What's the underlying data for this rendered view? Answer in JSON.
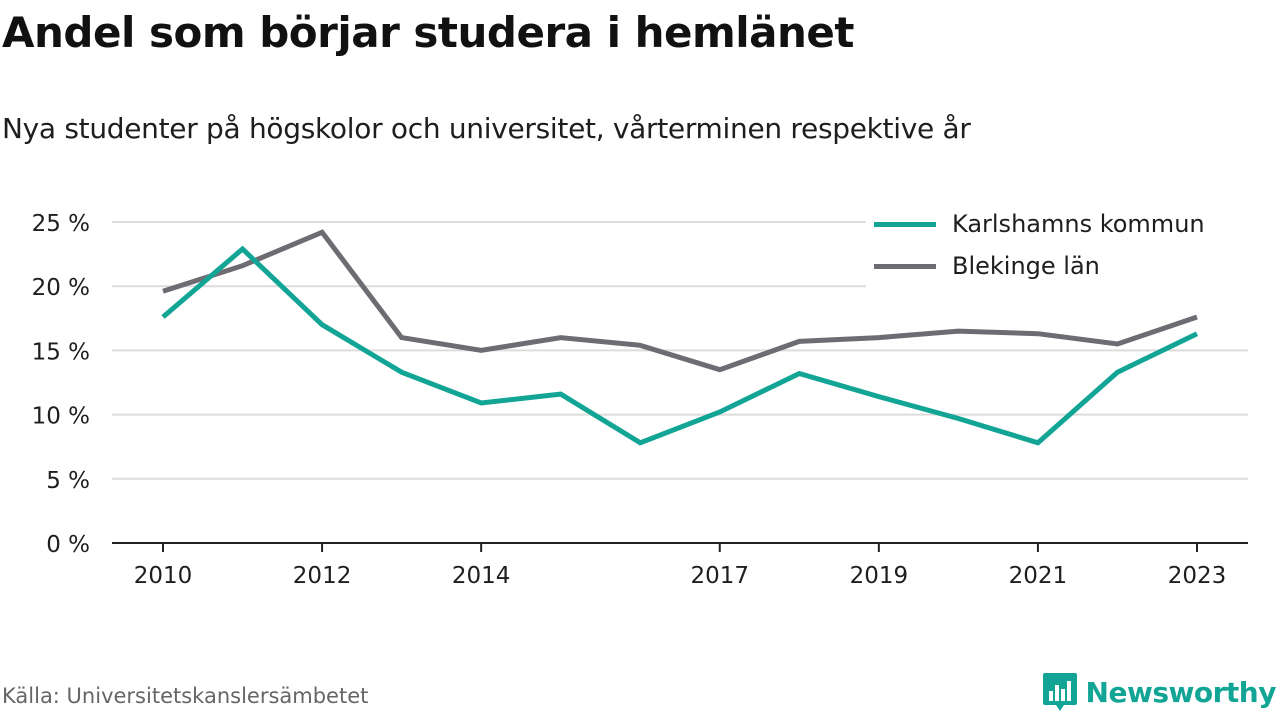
{
  "title": "Andel som börjar studera i hemlänet",
  "subtitle": "Nya studenter på högskolor och universitet, vårterminen respektive år",
  "source": "Källa: Universitetskanslersämbetet",
  "brand": {
    "name": "Newsworthy",
    "icon": "newsworthy-logo-icon",
    "color": "#12a596"
  },
  "chart_data": {
    "type": "line",
    "x": [
      2010,
      2011,
      2012,
      2013,
      2014,
      2015,
      2016,
      2017,
      2018,
      2019,
      2020,
      2021,
      2022,
      2023
    ],
    "x_tick_labels": [
      "2010",
      "2012",
      "2014",
      "2017",
      "2019",
      "2021",
      "2023"
    ],
    "x_tick_values": [
      2010,
      2012,
      2014,
      2017,
      2019,
      2021,
      2023
    ],
    "y_tick_labels": [
      "0 %",
      "5 %",
      "10 %",
      "15 %",
      "20 %",
      "25 %"
    ],
    "y_tick_values": [
      0,
      5,
      10,
      15,
      20,
      25
    ],
    "ylim": [
      0,
      25
    ],
    "grid": true,
    "legend_position": "top-right",
    "series": [
      {
        "name": "Karlshamns kommun",
        "color": "#12a596",
        "values": [
          17.6,
          22.9,
          17.0,
          13.3,
          10.9,
          11.6,
          7.8,
          10.2,
          13.2,
          11.4,
          9.7,
          7.8,
          13.3,
          16.3
        ]
      },
      {
        "name": "Blekinge län",
        "color": "#6e6c72",
        "values": [
          19.6,
          21.6,
          24.2,
          16.0,
          15.0,
          16.0,
          15.4,
          13.5,
          15.7,
          16.0,
          16.5,
          16.3,
          15.5,
          17.6
        ]
      }
    ]
  }
}
